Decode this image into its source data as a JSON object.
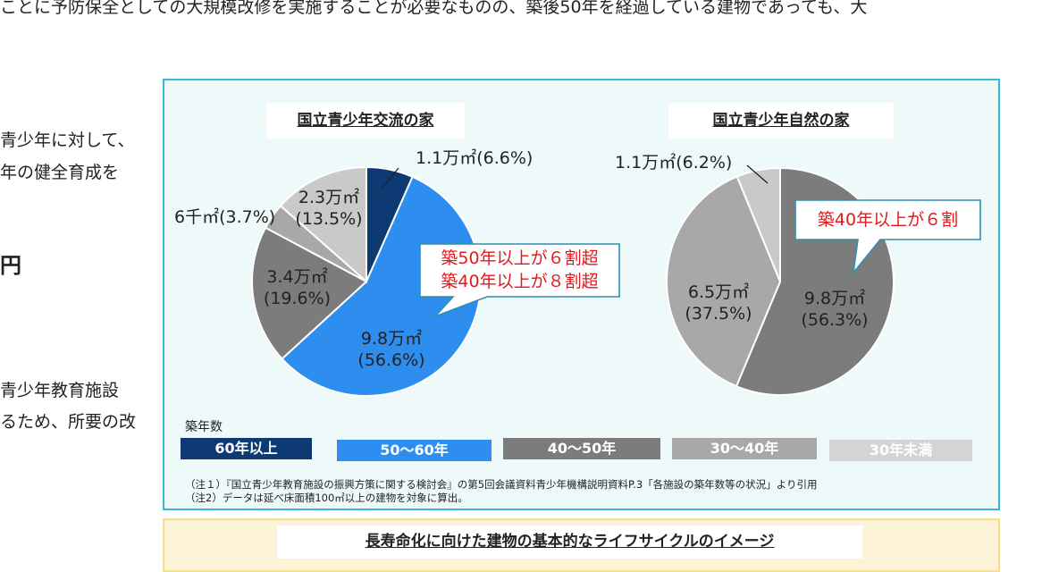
{
  "page": {
    "top_line": "ことに予防保全としての大規模改修を実施することが必要なものの、築後50年を経過している建物であっても、大",
    "left_texts": [
      "青少年に対して、",
      "年の健全育成を",
      "円",
      "青少年教育施設",
      "るため、所要の改"
    ]
  },
  "chart_data": [
    {
      "type": "pie",
      "title": "国立青少年交流の家",
      "slices": [
        {
          "label": "1.1万㎡(6.6%)",
          "value": 6.6,
          "color": "#0d3a73"
        },
        {
          "label": "9.8万㎡\n(56.6%)",
          "value": 56.6,
          "color": "#2d8ef0"
        },
        {
          "label": "3.4万㎡\n(19.6%)",
          "value": 19.6,
          "color": "#7c7c7c"
        },
        {
          "label": "6千㎡(3.7%)",
          "value": 3.7,
          "color": "#a8a8a8"
        },
        {
          "label": "2.3万㎡\n(13.5%)",
          "value": 13.5,
          "color": "#c9c9c9"
        }
      ],
      "callout": [
        "築50年以上が６割超",
        "築40年以上が８割超"
      ]
    },
    {
      "type": "pie",
      "title": "国立青少年自然の家",
      "slices": [
        {
          "label": "9.8万㎡\n(56.3%)",
          "value": 56.3,
          "color": "#7c7c7c"
        },
        {
          "label": "6.5万㎡\n(37.5%)",
          "value": 37.5,
          "color": "#a8a8a8"
        },
        {
          "label": "1.1万㎡(6.2%)",
          "value": 6.2,
          "color": "#c9c9c9"
        }
      ],
      "callout": [
        "築40年以上が６割"
      ]
    }
  ],
  "legend": {
    "title": "築年数",
    "items": [
      {
        "label": "60年以上",
        "color": "#0d3a73",
        "text_color": "#ffffff"
      },
      {
        "label": "50〜60年",
        "color": "#2d8ef0",
        "text_color": "#ffffff"
      },
      {
        "label": "40〜50年",
        "color": "#7c7c7c",
        "text_color": "#ffffff"
      },
      {
        "label": "30〜40年",
        "color": "#a8a8a8",
        "text_color": "#ffffff"
      },
      {
        "label": "30年未満",
        "color": "#d4d4d4",
        "text_color": "#ffffff"
      }
    ]
  },
  "notes": [
    "（注１）『国立青少年教育施設の振興方策に関する検討会』の第5回会議資料青少年機構説明資料P.3「各施設の築年数等の状況」より引用",
    "（注2）データは延べ床面積100㎡以上の建物を対象に算出。"
  ],
  "bottom": {
    "title": "長寿命化に向けた建物の基本的なライフサイクルのイメージ"
  }
}
